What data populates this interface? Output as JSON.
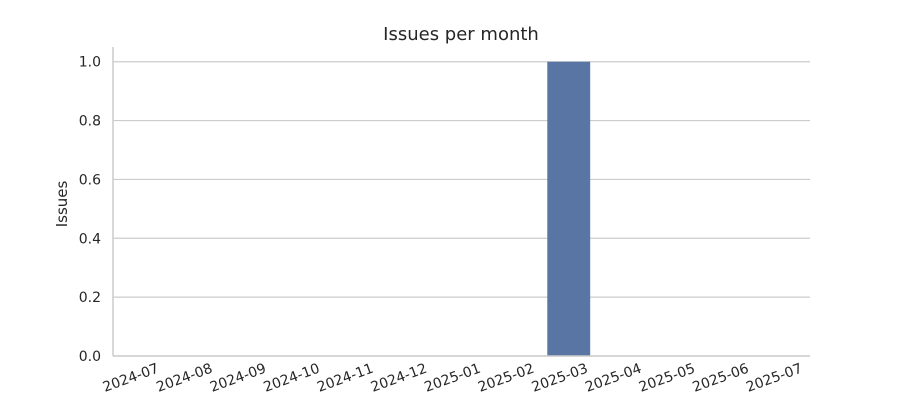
{
  "chart_data": {
    "type": "bar",
    "title": "Issues per month",
    "xlabel": "",
    "ylabel": "Issues",
    "categories": [
      "2024-07",
      "2024-08",
      "2024-09",
      "2024-10",
      "2024-11",
      "2024-12",
      "2025-01",
      "2025-02",
      "2025-03",
      "2025-04",
      "2025-05",
      "2025-06",
      "2025-07"
    ],
    "values": [
      0,
      0,
      0,
      0,
      0,
      0,
      0,
      0,
      1,
      0,
      0,
      0,
      0
    ],
    "ylim": [
      0,
      1.05
    ],
    "yticks": [
      "0.0",
      "0.2",
      "0.4",
      "0.6",
      "0.8",
      "1.0"
    ],
    "grid": "horizontal",
    "bar_color": "#5875a4",
    "grid_color": "#cccccc",
    "axis_color": "#cccccc",
    "text_color": "#262626"
  }
}
